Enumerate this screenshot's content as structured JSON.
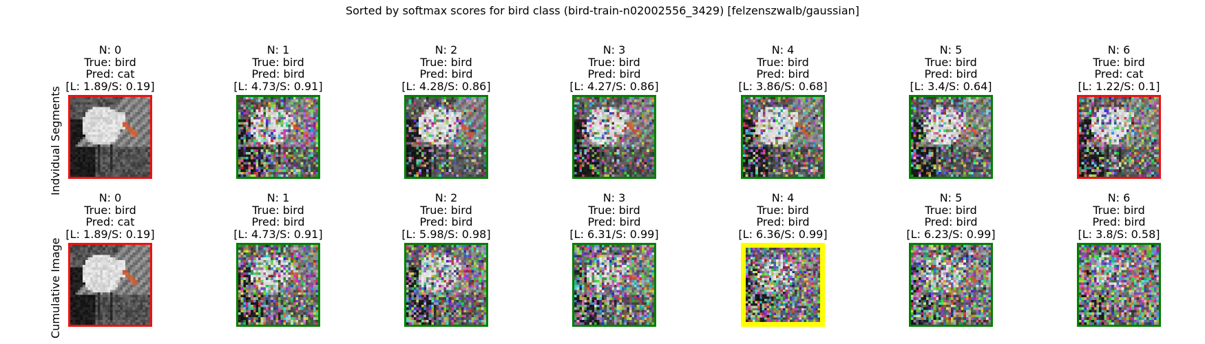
{
  "chart_data": {
    "type": "image_grid",
    "title": "Sorted by softmax scores for bird class (bird-train-n02002556_3429) [felzenszwalb/gaussian]",
    "row_labels": [
      "Indvidual Segments",
      "Cumulative Image"
    ],
    "frame_colors": {
      "correct": "#008000",
      "wrong": "#ee1111",
      "best": "#ffff00"
    },
    "rows": [
      {
        "name": "Indvidual Segments",
        "panels": [
          {
            "n": "N: 0",
            "true": "True: bird",
            "pred": "Pred: cat",
            "scores": "[L: 1.89/S: 0.19]",
            "logit": 1.89,
            "softmax": 0.19,
            "frame": "wrong",
            "noise": 0.0
          },
          {
            "n": "N: 1",
            "true": "True: bird",
            "pred": "Pred: bird",
            "scores": "[L: 4.73/S: 0.91]",
            "logit": 4.73,
            "softmax": 0.91,
            "frame": "correct",
            "noise": 0.55
          },
          {
            "n": "N: 2",
            "true": "True: bird",
            "pred": "Pred: bird",
            "scores": "[L: 4.28/S: 0.86]",
            "logit": 4.28,
            "softmax": 0.86,
            "frame": "correct",
            "noise": 0.35
          },
          {
            "n": "N: 3",
            "true": "True: bird",
            "pred": "Pred: bird",
            "scores": "[L: 4.27/S: 0.86]",
            "logit": 4.27,
            "softmax": 0.86,
            "frame": "correct",
            "noise": 0.35
          },
          {
            "n": "N: 4",
            "true": "True: bird",
            "pred": "Pred: bird",
            "scores": "[L: 3.86/S: 0.68]",
            "logit": 3.86,
            "softmax": 0.68,
            "frame": "correct",
            "noise": 0.4
          },
          {
            "n": "N: 5",
            "true": "True: bird",
            "pred": "Pred: bird",
            "scores": "[L: 3.4/S: 0.64]",
            "logit": 3.4,
            "softmax": 0.64,
            "frame": "correct",
            "noise": 0.4
          },
          {
            "n": "N: 6",
            "true": "True: bird",
            "pred": "Pred: cat",
            "scores": "[L: 1.22/S: 0.1]",
            "logit": 1.22,
            "softmax": 0.1,
            "frame": "wrong",
            "noise": 0.45
          }
        ]
      },
      {
        "name": "Cumulative Image",
        "panels": [
          {
            "n": "N: 0",
            "true": "True: bird",
            "pred": "Pred: cat",
            "scores": "[L: 1.89/S: 0.19]",
            "logit": 1.89,
            "softmax": 0.19,
            "frame": "wrong",
            "noise": 0.0
          },
          {
            "n": "N: 1",
            "true": "True: bird",
            "pred": "Pred: bird",
            "scores": "[L: 4.73/S: 0.91]",
            "logit": 4.73,
            "softmax": 0.91,
            "frame": "correct",
            "noise": 0.55
          },
          {
            "n": "N: 2",
            "true": "True: bird",
            "pred": "Pred: bird",
            "scores": "[L: 5.98/S: 0.98]",
            "logit": 5.98,
            "softmax": 0.98,
            "frame": "correct",
            "noise": 0.6
          },
          {
            "n": "N: 3",
            "true": "True: bird",
            "pred": "Pred: bird",
            "scores": "[L: 6.31/S: 0.99]",
            "logit": 6.31,
            "softmax": 0.99,
            "frame": "correct",
            "noise": 0.65
          },
          {
            "n": "N: 4",
            "true": "True: bird",
            "pred": "Pred: bird",
            "scores": "[L: 6.36/S: 0.99]",
            "logit": 6.36,
            "softmax": 0.99,
            "frame": "best",
            "noise": 0.7
          },
          {
            "n": "N: 5",
            "true": "True: bird",
            "pred": "Pred: bird",
            "scores": "[L: 6.23/S: 0.99]",
            "logit": 6.23,
            "softmax": 0.99,
            "frame": "correct",
            "noise": 0.75
          },
          {
            "n": "N: 6",
            "true": "True: bird",
            "pred": "Pred: bird",
            "scores": "[L: 3.8/S: 0.58]",
            "logit": 3.8,
            "softmax": 0.58,
            "frame": "correct",
            "noise": 0.85
          }
        ]
      }
    ]
  }
}
